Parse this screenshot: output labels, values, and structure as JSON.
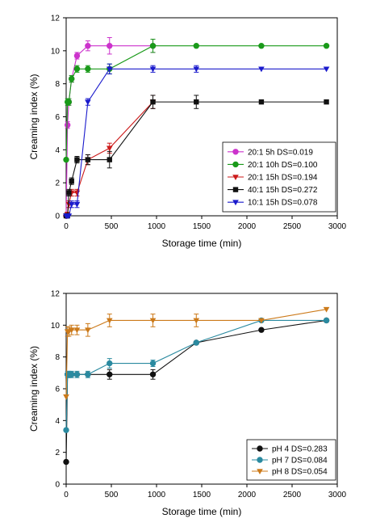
{
  "chart_data": [
    {
      "type": "line",
      "xlabel": "Storage time (min)",
      "ylabel": "Creaming index (%)",
      "xlim": [
        0,
        3000
      ],
      "ylim": [
        0,
        12
      ],
      "xticks": [
        0,
        500,
        1000,
        1500,
        2000,
        2500,
        3000
      ],
      "yticks": [
        0,
        2,
        4,
        6,
        8,
        10,
        12
      ],
      "grid": false,
      "legend_position": "bottom-right",
      "series": [
        {
          "name": "20:1 5h DS=0.019",
          "color": "#cc33cc",
          "marker": "circle",
          "x": [
            0,
            15,
            30,
            60,
            120,
            240,
            480,
            960
          ],
          "y": [
            0,
            5.5,
            6.9,
            8.3,
            9.7,
            10.3,
            10.3,
            10.3
          ],
          "err": [
            0,
            0.2,
            0.2,
            0.2,
            0.2,
            0.3,
            0.5,
            0.4
          ]
        },
        {
          "name": "20:1 10h DS=0.100",
          "color": "#1a9a1a",
          "marker": "circle",
          "x": [
            0,
            15,
            30,
            60,
            120,
            240,
            480,
            960,
            1440,
            2160,
            2880
          ],
          "y": [
            3.4,
            6.9,
            6.9,
            8.3,
            8.9,
            8.9,
            8.9,
            10.3,
            10.3,
            10.3,
            10.3
          ],
          "err": [
            0,
            0.2,
            0.2,
            0.2,
            0.2,
            0.2,
            0.3,
            0.4,
            0,
            0,
            0
          ]
        },
        {
          "name": "20:1 15h DS=0.194",
          "color": "#cc1a1a",
          "marker": "triangle-down",
          "x": [
            0,
            15,
            30,
            60,
            120,
            240,
            480,
            960
          ],
          "y": [
            0,
            0.1,
            0.7,
            1.4,
            1.4,
            3.4,
            4.1,
            6.9
          ],
          "err": [
            0,
            0.1,
            0.2,
            0.2,
            0.2,
            0.3,
            0.3,
            0.4
          ]
        },
        {
          "name": "40:1 15h DS=0.272",
          "color": "#111111",
          "marker": "square",
          "x": [
            0,
            15,
            30,
            60,
            120,
            240,
            480,
            960,
            1440,
            2160,
            2880
          ],
          "y": [
            0,
            0,
            1.4,
            2.1,
            3.4,
            3.4,
            3.4,
            6.9,
            6.9,
            6.9,
            6.9
          ],
          "err": [
            0,
            0,
            0.2,
            0.2,
            0.2,
            0.3,
            0.5,
            0.4,
            0.4,
            0,
            0
          ]
        },
        {
          "name": "10:1 15h DS=0.078",
          "color": "#1a1acc",
          "marker": "triangle-down",
          "x": [
            0,
            15,
            30,
            60,
            120,
            240,
            480,
            960,
            1440,
            2160,
            2880
          ],
          "y": [
            0,
            0,
            0,
            0.7,
            0.7,
            6.9,
            8.9,
            8.9,
            8.9,
            8.9,
            8.9
          ],
          "err": [
            0,
            0,
            0,
            0.2,
            0.2,
            0.2,
            0.3,
            0.2,
            0.2,
            0,
            0
          ]
        }
      ]
    },
    {
      "type": "line",
      "xlabel": "Storage time (min)",
      "ylabel": "Creaming index (%)",
      "xlim": [
        0,
        3000
      ],
      "ylim": [
        0,
        12
      ],
      "xticks": [
        0,
        500,
        1000,
        1500,
        2000,
        2500,
        3000
      ],
      "yticks": [
        0,
        2,
        4,
        6,
        8,
        10,
        12
      ],
      "grid": false,
      "legend_position": "bottom-right",
      "series": [
        {
          "name": "pH 4 DS=0.283",
          "color": "#111111",
          "marker": "circle",
          "x": [
            0,
            15,
            30,
            60,
            120,
            240,
            480,
            960,
            1440,
            2160,
            2880
          ],
          "y": [
            1.4,
            6.9,
            6.9,
            6.9,
            6.9,
            6.9,
            6.9,
            6.9,
            8.9,
            9.7,
            10.3
          ],
          "err": [
            0,
            0,
            0,
            0,
            0,
            0,
            0.3,
            0.3,
            0,
            0,
            0
          ]
        },
        {
          "name": "pH 7 DS=0.084",
          "color": "#2a8aa0",
          "marker": "circle",
          "x": [
            0,
            15,
            30,
            60,
            120,
            240,
            480,
            960,
            1440,
            2160,
            2880
          ],
          "y": [
            3.4,
            6.9,
            6.9,
            6.9,
            6.9,
            6.9,
            7.6,
            7.6,
            8.9,
            10.3,
            10.3
          ],
          "err": [
            0,
            0.2,
            0.2,
            0.2,
            0.2,
            0.2,
            0.3,
            0.2,
            0,
            0,
            0
          ]
        },
        {
          "name": "pH 8 DS=0.054",
          "color": "#cc7a1a",
          "marker": "triangle-down",
          "x": [
            0,
            15,
            30,
            60,
            120,
            240,
            480,
            960,
            1440,
            2160,
            2880
          ],
          "y": [
            5.5,
            9.6,
            9.6,
            9.7,
            9.7,
            9.7,
            10.3,
            10.3,
            10.3,
            10.3,
            11.0
          ],
          "err": [
            0,
            0.3,
            0.3,
            0.3,
            0.3,
            0.4,
            0.4,
            0.4,
            0.4,
            0,
            0
          ]
        }
      ]
    }
  ]
}
